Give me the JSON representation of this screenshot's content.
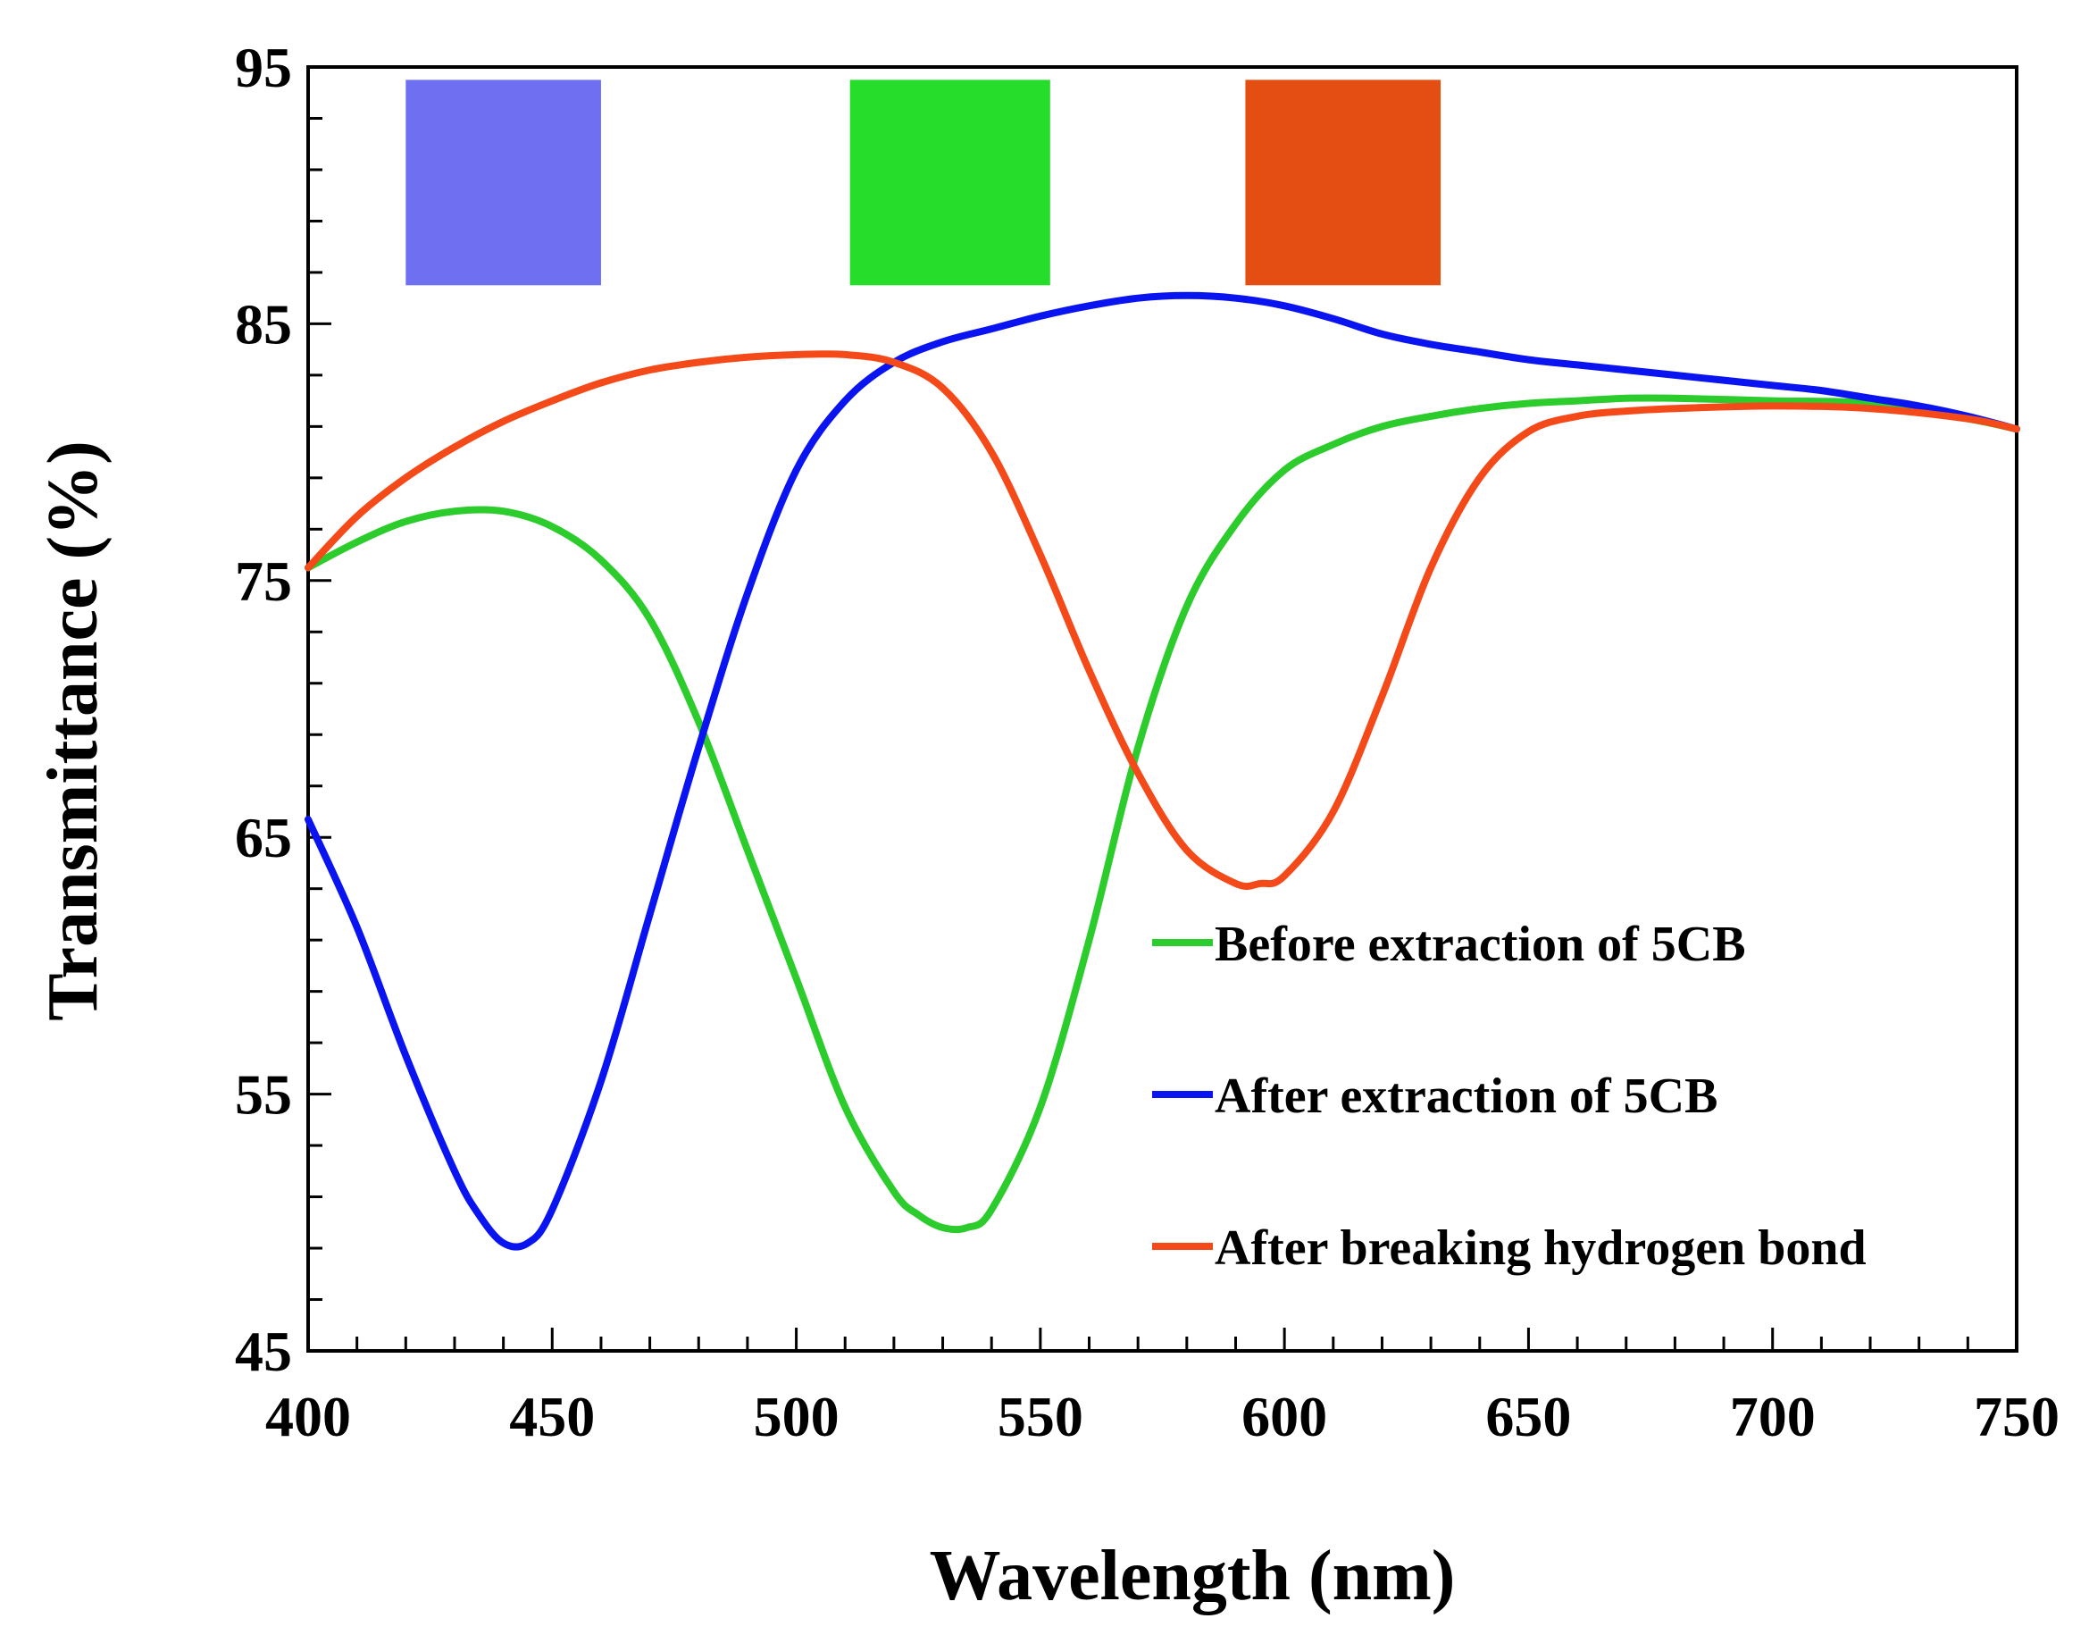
{
  "chart_data": {
    "type": "line",
    "title": "",
    "xlabel": "Wavelength  (nm)",
    "ylabel": "Transmittance  (%)",
    "xlim": [
      400,
      750
    ],
    "ylim": [
      45,
      95
    ],
    "x_ticks": [
      "400",
      "450",
      "500",
      "550",
      "600",
      "650",
      "700",
      "750"
    ],
    "y_ticks": [
      "45",
      "55",
      "65",
      "75",
      "85",
      "95"
    ],
    "grid": false,
    "legend_position": "lower-right",
    "swatches": [
      {
        "color": "#6f6ff2",
        "x_range": [
          420,
          460
        ],
        "y_range": [
          86.5,
          94.5
        ]
      },
      {
        "color": "#25dd2a",
        "x_range": [
          511,
          552
        ],
        "y_range": [
          86.5,
          94.5
        ]
      },
      {
        "color": "#e44e12",
        "x_range": [
          592,
          632
        ],
        "y_range": [
          86.5,
          94.5
        ]
      }
    ],
    "series": [
      {
        "name": "Before extraction of 5CB",
        "color": "#2dcc2d",
        "x": [
          400,
          410,
          420,
          430,
          440,
          450,
          460,
          470,
          480,
          490,
          500,
          510,
          520,
          525,
          530,
          535,
          540,
          550,
          560,
          570,
          580,
          590,
          600,
          610,
          620,
          630,
          640,
          650,
          660,
          670,
          680,
          700,
          720,
          740,
          750
        ],
        "y": [
          75.5,
          76.5,
          77.3,
          77.7,
          77.7,
          77.1,
          75.8,
          73.5,
          69.5,
          64.5,
          59.5,
          54.5,
          51.2,
          50.3,
          49.8,
          49.8,
          50.5,
          54.5,
          61.0,
          68.5,
          74.0,
          77.2,
          79.3,
          80.3,
          81.0,
          81.4,
          81.7,
          81.9,
          82.0,
          82.1,
          82.1,
          82.0,
          81.9,
          81.3,
          80.9
        ]
      },
      {
        "name": "After extraction of 5CB",
        "color": "#0a14f0",
        "x": [
          400,
          410,
          420,
          430,
          435,
          440,
          445,
          450,
          460,
          470,
          480,
          490,
          500,
          510,
          520,
          530,
          540,
          550,
          560,
          570,
          580,
          590,
          600,
          610,
          620,
          630,
          640,
          650,
          660,
          670,
          680,
          690,
          700,
          710,
          720,
          730,
          740,
          750
        ],
        "y": [
          65.7,
          61.5,
          56.5,
          52.0,
          50.3,
          49.2,
          49.2,
          50.5,
          55.5,
          62.0,
          68.5,
          74.5,
          79.3,
          82.0,
          83.5,
          84.3,
          84.8,
          85.3,
          85.7,
          86.0,
          86.1,
          86.0,
          85.7,
          85.2,
          84.6,
          84.2,
          83.9,
          83.6,
          83.4,
          83.2,
          83.0,
          82.8,
          82.6,
          82.4,
          82.1,
          81.8,
          81.4,
          80.9
        ]
      },
      {
        "name": "After breaking hydrogen bond",
        "color": "#f44a1a",
        "x": [
          400,
          410,
          420,
          430,
          440,
          450,
          460,
          470,
          480,
          490,
          500,
          510,
          520,
          530,
          540,
          550,
          560,
          570,
          580,
          590,
          595,
          600,
          610,
          620,
          630,
          640,
          650,
          660,
          670,
          680,
          700,
          720,
          740,
          750
        ],
        "y": [
          75.5,
          77.5,
          79.0,
          80.2,
          81.2,
          82.0,
          82.7,
          83.2,
          83.5,
          83.7,
          83.8,
          83.8,
          83.5,
          82.5,
          80.0,
          76.0,
          71.5,
          67.5,
          64.5,
          63.2,
          63.2,
          63.5,
          66.0,
          70.5,
          75.5,
          79.0,
          80.8,
          81.4,
          81.6,
          81.7,
          81.8,
          81.7,
          81.3,
          80.9
        ]
      }
    ]
  }
}
